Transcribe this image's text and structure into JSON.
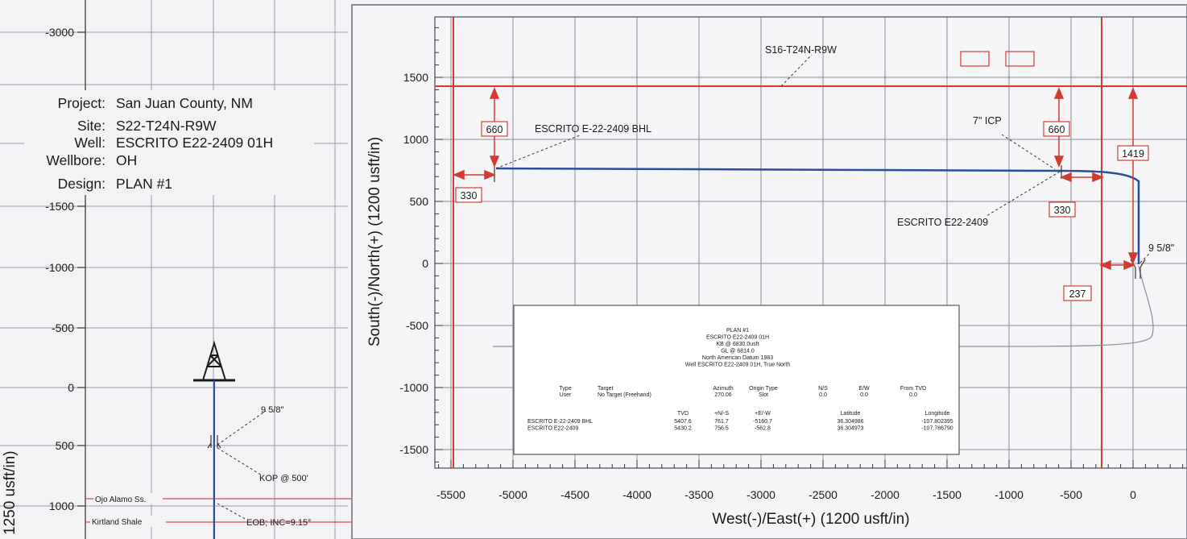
{
  "info": {
    "rows": [
      {
        "key": "Project:",
        "value": "San Juan County, NM"
      },
      {
        "key": "Site:",
        "value": "S22-T24N-R9W"
      },
      {
        "key": "Well:",
        "value": "ESCRITO E22-2409 01H"
      },
      {
        "key": "Wellbore:",
        "value": "OH"
      },
      {
        "key": "Design:",
        "value": "PLAN #1"
      }
    ]
  },
  "left_plot": {
    "y_ticks": [
      "-3000",
      "-1500",
      "-1000",
      "-500",
      "0",
      "500",
      "1000"
    ],
    "y_axis_label": "1250 usft/in)",
    "annotations": {
      "casing": "9 5/8\"",
      "kop": "KOP @ 500'",
      "eob": "EOB; INC=9.15°"
    },
    "formations": [
      "Ojo Alamo Ss.",
      "Kirtland Shale"
    ]
  },
  "right_plot": {
    "x_axis_label": "West(-)/East(+) (1200 usft/in)",
    "y_axis_label": "South(-)/North(+) (1200 usft/in)",
    "x_ticks": [
      "-5500",
      "-5000",
      "-4500",
      "-4000",
      "-3500",
      "-3000",
      "-2500",
      "-2000",
      "-1500",
      "-1000",
      "-500",
      "0"
    ],
    "y_ticks": [
      "1500",
      "1000",
      "500",
      "0",
      "-500",
      "-1000",
      "-1500"
    ],
    "section_label": "S16-T24N-R9W",
    "bhl_label": "ESCRITO E-22-2409 BHL",
    "icp_label": "7\" ICP",
    "well_label": "ESCRITO E22-2409",
    "casing_label": "9 5/8\"",
    "dims": {
      "d660_left": "660",
      "d330_left": "330",
      "d660_right": "660",
      "d1419": "1419",
      "d330_right": "330",
      "d237": "237"
    }
  },
  "legend": {
    "title_lines": [
      "PLAN #1",
      "ESCRITO E22-2409 01H",
      "KB @ 6830.0usft",
      "GL @ 6814.0",
      "North American Datum 1983",
      "Well ESCRITO E22-2409 01H, True North"
    ],
    "target_header": [
      "Type",
      "Target",
      "Azimuth",
      "Origin Type",
      "N/S",
      "E/W",
      "From TVD"
    ],
    "target_row": [
      "User",
      "No Target (Freehand)",
      "270.06",
      "Slot",
      "0.0",
      "0.0",
      "0.0"
    ],
    "point_header": [
      "TVD",
      "+N/-S",
      "+E/-W",
      "Latitude",
      "Longitude"
    ],
    "point_rows": [
      [
        "ESCRITO E-22-2409 BHL",
        "5407.6",
        "761.7",
        "-5160.7",
        "36.304986",
        "-107.802395"
      ],
      [
        "ESCRITO E22-2409",
        "5430.2",
        "756.5",
        "-562.8",
        "36.304973",
        "-107.786790"
      ]
    ]
  },
  "colors": {
    "well_path": "#2b4f9c",
    "lease": "#d23b32",
    "grid": "#8a8c98",
    "frame": "#6b6d78"
  }
}
